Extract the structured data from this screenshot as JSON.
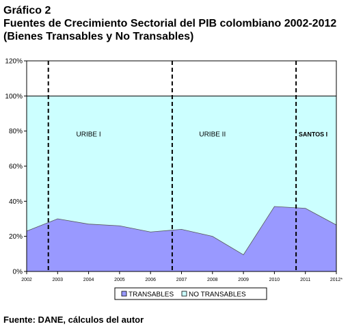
{
  "title_lines": [
    "Gráfico 2",
    "Fuentes de Crecimiento Sectorial del PIB colombiano 2002-2012",
    "(Bienes Transables y No Transables)"
  ],
  "source": "Fuente: DANE, cálculos del autor",
  "colors": {
    "transables": "#9999ff",
    "no_transables": "#ccffff"
  },
  "chart_data": {
    "type": "area",
    "stacked": true,
    "categories": [
      "2002",
      "2003",
      "2004",
      "2005",
      "2006",
      "2007",
      "2008",
      "2009",
      "2010",
      "2011",
      "2012*"
    ],
    "series": [
      {
        "name": "TRANSABLES",
        "values": [
          23,
          30,
          27,
          26,
          22.5,
          24,
          20,
          9.5,
          37,
          36,
          26.5
        ]
      },
      {
        "name": "NO TRANSABLES",
        "values": [
          77,
          70,
          73,
          74,
          77.5,
          76,
          80,
          90.5,
          63,
          64,
          73.5
        ]
      }
    ],
    "ylim": [
      0,
      120
    ],
    "yticks": [
      "0%",
      "20%",
      "40%",
      "60%",
      "80%",
      "100%",
      "120%"
    ],
    "legend_position": "bottom",
    "annotations": [
      {
        "label": "URIBE I",
        "x_index": 2
      },
      {
        "label": "URIBE II",
        "x_index": 6
      },
      {
        "label": "SANTOS I",
        "x_index": 9.25
      }
    ],
    "period_dividers_x_index": [
      0.7,
      4.7,
      8.7
    ]
  }
}
